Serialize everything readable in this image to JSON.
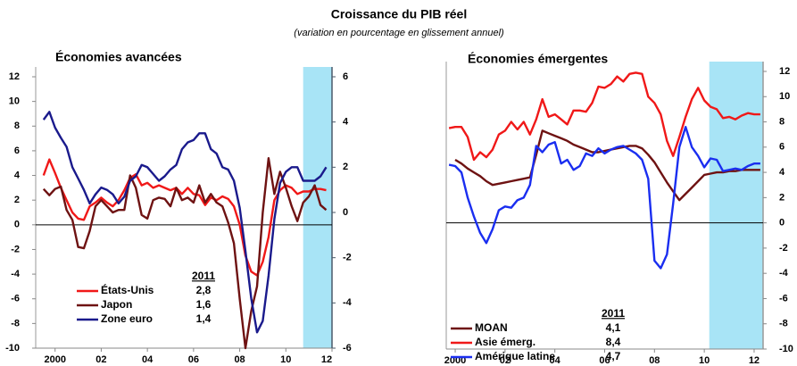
{
  "title": "Croissance du PIB réel",
  "subtitle": "(variation en pourcentage en glissement annuel)",
  "chart_data": [
    {
      "type": "line",
      "title": "Économies avancées",
      "x": [
        1999.5,
        1999.75,
        2000,
        2000.25,
        2000.5,
        2000.75,
        2001,
        2001.25,
        2001.5,
        2001.75,
        2002,
        2002.25,
        2002.5,
        2002.75,
        2003,
        2003.25,
        2003.5,
        2003.75,
        2004,
        2004.25,
        2004.5,
        2004.75,
        2005,
        2005.25,
        2005.5,
        2005.75,
        2006,
        2006.25,
        2006.5,
        2006.75,
        2007,
        2007.25,
        2007.5,
        2007.75,
        2008,
        2008.25,
        2008.5,
        2008.75,
        2009,
        2009.25,
        2009.5,
        2009.75,
        2010,
        2010.25,
        2010.5,
        2010.75,
        2011,
        2011.25,
        2011.5,
        2011.75
      ],
      "xlim": [
        1999.16,
        2012
      ],
      "xticks": [
        2000,
        {
          "value": 2002,
          "label": "02"
        },
        {
          "value": 2004,
          "label": "04"
        },
        {
          "value": 2006,
          "label": "06"
        },
        {
          "value": 2008,
          "label": "08"
        },
        {
          "value": 2010,
          "label": "10"
        },
        {
          "value": 2012,
          "label": "12"
        }
      ],
      "ylim": [
        -10,
        12
      ],
      "yticks": [
        12,
        10,
        8,
        6,
        4,
        2,
        0,
        -2,
        -4,
        -6,
        -8,
        -10
      ],
      "y2lim": [
        -6,
        6
      ],
      "y2ticks": [
        6,
        4,
        2,
        0,
        -2,
        -4,
        -6
      ],
      "shade_from": 2010.75,
      "shade_color": "#a8e4f6",
      "legend": "lower-left",
      "legend_title": "2011",
      "series": [
        {
          "name": "États-Unis",
          "color": "#f01818",
          "legend_value": 2.8,
          "legend_value_label": "2,8",
          "legend_value_color": "#e01818",
          "values": [
            4.0,
            5.3,
            4.2,
            3.0,
            2.0,
            1.0,
            0.5,
            0.4,
            1.5,
            1.8,
            2.2,
            1.8,
            1.5,
            2.0,
            2.8,
            3.8,
            4.1,
            3.2,
            3.4,
            3.0,
            3.2,
            3.0,
            2.8,
            3.0,
            2.5,
            3.0,
            2.5,
            2.4,
            1.6,
            2.2,
            2.0,
            2.3,
            2.1,
            1.5,
            0.0,
            -2.5,
            -3.8,
            -4.1,
            -3.0,
            -1.0,
            2.0,
            2.8,
            3.2,
            3.0,
            2.5,
            2.7,
            2.7,
            2.9,
            2.9,
            2.8
          ]
        },
        {
          "name": "Japon",
          "color": "#6e1212",
          "legend_value": 1.6,
          "legend_value_label": "1,6",
          "legend_value_color": "#1a1a9a",
          "values": [
            2.9,
            2.4,
            2.9,
            3.1,
            1.2,
            0.4,
            -1.8,
            -1.9,
            -0.5,
            1.5,
            2.0,
            1.5,
            1.0,
            1.2,
            1.2,
            4.0,
            3.0,
            0.8,
            0.5,
            2.0,
            2.2,
            2.1,
            1.5,
            3.0,
            2.0,
            2.2,
            1.8,
            3.2,
            1.8,
            2.5,
            1.8,
            1.5,
            0.2,
            -1.5,
            -6.0,
            -10.0,
            -7.0,
            -5.0,
            1.0,
            5.4,
            2.5,
            4.3,
            3.0,
            1.5,
            0.3,
            1.8,
            2.3,
            3.2,
            1.6,
            1.2
          ]
        },
        {
          "name": "Zone euro",
          "color": "#1a1a8c",
          "axis": "y2",
          "legend_value": 1.4,
          "legend_value_label": "1,4",
          "legend_value_color": "#7a1414",
          "values": [
            4.1,
            4.45,
            3.75,
            3.3,
            2.9,
            2.0,
            1.5,
            1.0,
            0.4,
            0.8,
            1.1,
            1.0,
            0.8,
            0.4,
            0.7,
            1.4,
            1.6,
            2.1,
            2.0,
            1.7,
            1.4,
            1.6,
            1.9,
            2.1,
            2.8,
            3.1,
            3.2,
            3.5,
            3.5,
            2.8,
            2.6,
            2.0,
            1.9,
            1.4,
            0.2,
            -1.7,
            -3.8,
            -5.3,
            -4.8,
            -2.8,
            -0.3,
            1.3,
            1.8,
            2.0,
            2.0,
            1.4,
            1.4,
            1.4,
            1.6,
            2.0
          ]
        }
      ]
    },
    {
      "type": "line",
      "title": "Économies émergentes",
      "x": [
        1999.75,
        2000,
        2000.25,
        2000.5,
        2000.75,
        2001,
        2001.25,
        2001.5,
        2001.75,
        2002,
        2002.25,
        2002.5,
        2002.75,
        2003,
        2003.25,
        2003.5,
        2003.75,
        2004,
        2004.25,
        2004.5,
        2004.75,
        2005,
        2005.25,
        2005.5,
        2005.75,
        2006,
        2006.25,
        2006.5,
        2006.75,
        2007,
        2007.25,
        2007.5,
        2007.75,
        2008,
        2008.25,
        2008.5,
        2008.75,
        2009,
        2009.25,
        2009.5,
        2009.75,
        2010,
        2010.25,
        2010.5,
        2010.75,
        2011,
        2011.25,
        2011.5,
        2011.75,
        2012,
        2012.25
      ],
      "xlim": [
        1999.64,
        2012.36
      ],
      "xticks": [
        2000,
        {
          "value": 2002,
          "label": "02"
        },
        {
          "value": 2004,
          "label": "04"
        },
        {
          "value": 2006,
          "label": "06"
        },
        {
          "value": 2008,
          "label": "08"
        },
        {
          "value": 2010,
          "label": "10"
        },
        {
          "value": 2012,
          "label": "12"
        }
      ],
      "ylim": [
        -10,
        12
      ],
      "yticks": [
        12,
        10,
        8,
        6,
        4,
        2,
        0,
        -2,
        -4,
        -6,
        -8,
        -10
      ],
      "yaxis_side": "right",
      "shade_from": 2010.2,
      "shade_color": "#a8e4f6",
      "legend": "lower-left",
      "legend_title": "2011",
      "series": [
        {
          "name": "MOAN",
          "color": "#6e1212",
          "legend_value": 4.1,
          "legend_value_label": "4,1",
          "legend_value_color": "#6e1212",
          "values": [
            null,
            5.0,
            4.7,
            4.3,
            4.0,
            3.7,
            3.3,
            3.0,
            3.1,
            3.2,
            3.3,
            3.4,
            3.5,
            3.6,
            5.4,
            7.3,
            7.1,
            6.9,
            6.7,
            6.5,
            6.2,
            6.0,
            5.8,
            5.6,
            5.6,
            5.7,
            5.8,
            5.9,
            6.0,
            6.1,
            6.1,
            5.9,
            5.4,
            4.8,
            4.0,
            3.2,
            2.5,
            1.8,
            2.3,
            2.8,
            3.3,
            3.8,
            3.9,
            4.0,
            4.0,
            4.1,
            4.1,
            4.2,
            4.2,
            4.2,
            4.2
          ]
        },
        {
          "name": "Asie émerg.",
          "color": "#f01818",
          "legend_value": 8.4,
          "legend_value_label": "8,4",
          "legend_value_color": "#f01818",
          "values": [
            7.5,
            7.6,
            7.6,
            6.8,
            5.0,
            5.6,
            5.2,
            5.8,
            7.0,
            7.3,
            8.0,
            7.4,
            8.0,
            7.0,
            8.2,
            9.8,
            8.4,
            8.6,
            8.2,
            7.8,
            8.9,
            8.9,
            8.8,
            9.5,
            10.8,
            10.7,
            11.0,
            11.6,
            11.2,
            11.8,
            11.9,
            11.8,
            10.0,
            9.5,
            8.6,
            6.5,
            5.3,
            6.8,
            8.4,
            9.8,
            10.7,
            9.7,
            9.2,
            9.0,
            8.3,
            8.4,
            8.2,
            8.5,
            8.7,
            8.6,
            8.6
          ]
        },
        {
          "name": "Amérique latine",
          "color": "#1a2ef0",
          "legend_value": 4.7,
          "legend_value_label": "4,7",
          "legend_value_color": "#1a2ef0",
          "values": [
            4.6,
            4.5,
            4.0,
            2.0,
            0.5,
            -0.8,
            -1.6,
            -0.5,
            1.0,
            1.3,
            1.2,
            1.8,
            2.0,
            3.0,
            6.1,
            5.6,
            6.2,
            6.4,
            4.7,
            5.0,
            4.2,
            4.5,
            5.5,
            5.3,
            5.9,
            5.5,
            5.8,
            6.0,
            6.1,
            5.8,
            5.5,
            5.0,
            3.5,
            -3.0,
            -3.6,
            -2.5,
            1.5,
            6.0,
            7.6,
            6.0,
            5.3,
            4.4,
            5.1,
            5.0,
            4.1,
            4.2,
            4.3,
            4.2,
            4.5,
            4.7,
            4.7
          ]
        }
      ]
    }
  ]
}
